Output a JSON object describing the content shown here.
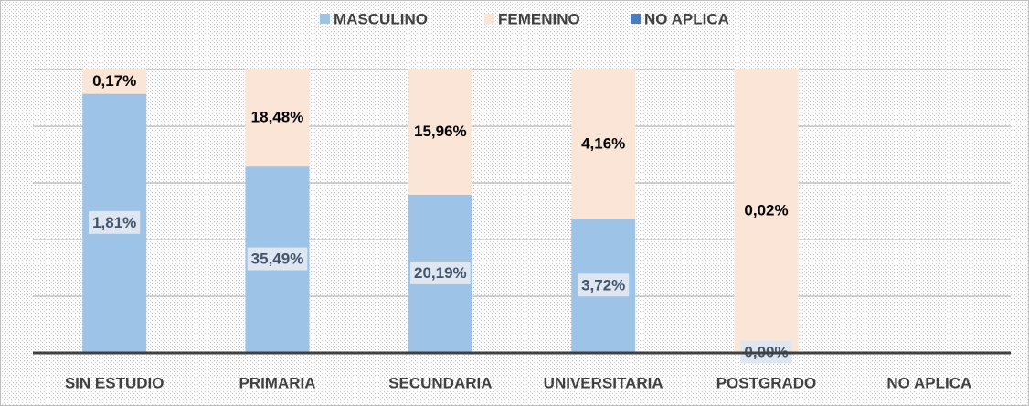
{
  "chart_data": {
    "type": "bar",
    "stacking": "percent",
    "categories": [
      "SIN ESTUDIO",
      "PRIMARIA",
      "SECUNDARIA",
      "UNIVERSITARIA",
      "POSTGRADO",
      "NO APLICA"
    ],
    "series": [
      {
        "name": "MASCULINO",
        "color": "#9dc3e6",
        "values": [
          1.81,
          35.49,
          20.19,
          3.72,
          0.0,
          null
        ],
        "value_labels": [
          "1,81%",
          "35,49%",
          "20,19%",
          "3,72%",
          "0,00%",
          null
        ]
      },
      {
        "name": "FEMENINO",
        "color": "#fbe5d6",
        "values": [
          0.17,
          18.48,
          15.96,
          4.16,
          0.02,
          null
        ],
        "value_labels": [
          "0,17%",
          "18,48%",
          "15,96%",
          "4,16%",
          "0,02%",
          null
        ]
      },
      {
        "name": "NO APLICA",
        "color": "#4a7ebb",
        "values": [
          0,
          0,
          0,
          0,
          0,
          null
        ]
      }
    ],
    "ylim": [
      0,
      100
    ],
    "yticks": [
      0,
      20,
      40,
      60,
      80,
      100
    ],
    "grid": true,
    "legend": "top"
  }
}
